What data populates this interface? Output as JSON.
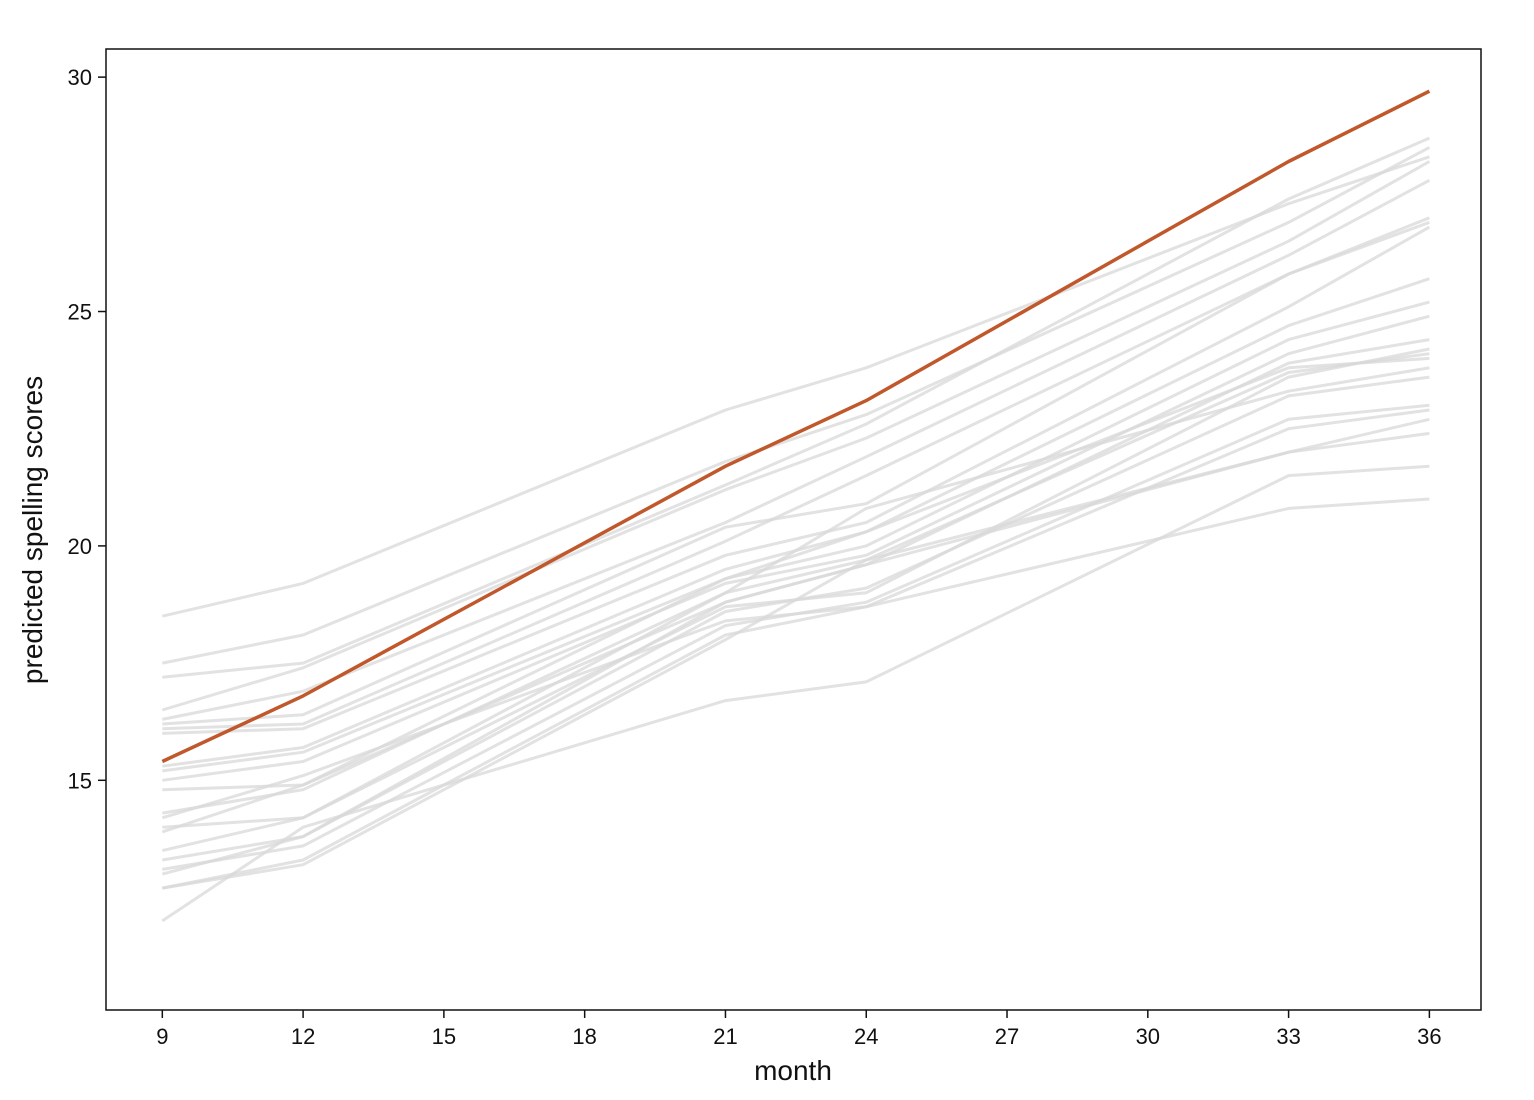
{
  "chart_data": {
    "type": "line",
    "title": "",
    "xlabel": "month",
    "ylabel": "predicted spelling scores",
    "x": [
      9,
      12,
      21,
      24,
      33,
      36
    ],
    "xlim": [
      7.8,
      37.1
    ],
    "ylim": [
      10.1,
      30.6
    ],
    "xticks": [
      9,
      12,
      15,
      18,
      21,
      24,
      27,
      30,
      33,
      36
    ],
    "yticks": [
      15,
      20,
      25,
      30
    ],
    "grid": false,
    "legend": "none",
    "colors": {
      "highlight": "#c0582b",
      "background_series": "#d8d8d8",
      "frame": "#111111"
    },
    "highlight": {
      "values": [
        15.4,
        16.8,
        21.7,
        23.1,
        28.2,
        29.7
      ]
    },
    "series": [
      {
        "values": [
          18.5,
          19.2,
          22.9,
          23.8,
          27.3,
          28.3
        ]
      },
      {
        "values": [
          17.5,
          18.1,
          21.8,
          22.8,
          26.9,
          28.5
        ]
      },
      {
        "values": [
          17.2,
          17.5,
          21.3,
          22.6,
          27.4,
          28.7
        ]
      },
      {
        "values": [
          16.5,
          17.4,
          21.2,
          22.3,
          26.5,
          28.2
        ]
      },
      {
        "values": [
          16.3,
          16.9,
          20.5,
          21.9,
          26.2,
          27.8
        ]
      },
      {
        "values": [
          16.2,
          16.4,
          20.4,
          20.9,
          25.8,
          27.0
        ]
      },
      {
        "values": [
          16.1,
          16.2,
          20.1,
          21.5,
          25.8,
          26.9
        ]
      },
      {
        "values": [
          16.0,
          16.1,
          19.8,
          20.5,
          25.1,
          26.8
        ]
      },
      {
        "values": [
          15.3,
          15.7,
          19.5,
          20.3,
          24.7,
          25.7
        ]
      },
      {
        "values": [
          15.2,
          15.6,
          19.3,
          20.0,
          24.4,
          25.2
        ]
      },
      {
        "values": [
          15.0,
          15.4,
          19.2,
          19.8,
          24.1,
          24.9
        ]
      },
      {
        "values": [
          14.8,
          14.9,
          18.8,
          19.6,
          23.9,
          24.4
        ]
      },
      {
        "values": [
          14.3,
          14.8,
          19.0,
          19.7,
          23.7,
          24.1
        ]
      },
      {
        "values": [
          14.0,
          14.2,
          18.7,
          19.0,
          23.6,
          24.2
        ]
      },
      {
        "values": [
          13.9,
          14.9,
          19.3,
          20.3,
          23.8,
          24.0
        ]
      },
      {
        "values": [
          13.5,
          14.2,
          19.0,
          20.8,
          23.3,
          23.8
        ]
      },
      {
        "values": [
          13.3,
          13.8,
          18.6,
          19.1,
          23.2,
          23.6
        ]
      },
      {
        "values": [
          13.1,
          13.6,
          18.3,
          18.8,
          22.7,
          23.0
        ]
      },
      {
        "values": [
          12.7,
          13.3,
          18.1,
          18.7,
          22.5,
          22.9
        ]
      },
      {
        "values": [
          12.7,
          13.2,
          18.0,
          19.7,
          22.0,
          22.7
        ]
      },
      {
        "values": [
          13.0,
          13.8,
          18.8,
          19.6,
          22.0,
          22.4
        ]
      },
      {
        "values": [
          12.0,
          14.0,
          16.7,
          17.1,
          21.5,
          21.7
        ]
      },
      {
        "values": [
          14.2,
          15.1,
          18.4,
          18.7,
          20.8,
          21.0
        ]
      }
    ]
  }
}
